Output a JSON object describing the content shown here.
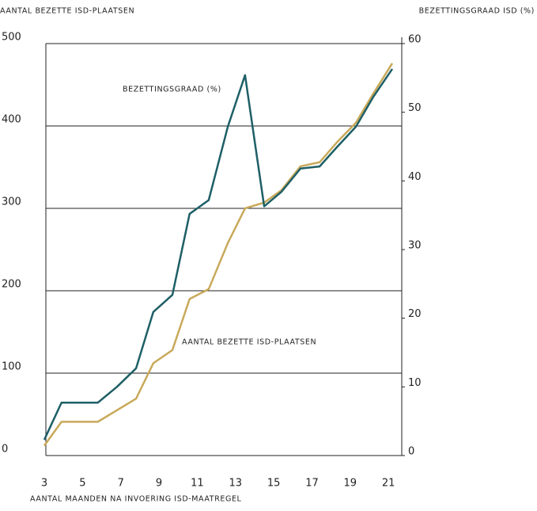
{
  "chart_data": {
    "type": "line",
    "title": "AANTAL BEZETTE ISD-PLAATSEN",
    "y2_title": "BEZETTINGSGRAAD ISD (%)",
    "x_label": "AANTAL MAANDEN NA INVOERING ISD-MAATREGEL",
    "annotations": [
      "BEZETTINGSGRAAD (%)",
      "AANTAL BEZETTE ISD-PLAATSEN"
    ],
    "x": [
      3,
      3.9,
      4.9,
      5.8,
      6.8,
      7.8,
      8.7,
      9.7,
      10.6,
      11.6,
      12.6,
      13.5,
      14.5,
      15.4,
      16.4,
      17.4,
      18.3,
      19.3,
      20.2,
      21.2
    ],
    "series": [
      {
        "name": "AANTAL BEZETTE ISD-PLAATSEN",
        "color": "#c8a95a",
        "axis": "y",
        "values": [
          12,
          41,
          41,
          41,
          55,
          69,
          112,
          128,
          190,
          202,
          258,
          300,
          307,
          322,
          351,
          356,
          380,
          404,
          439,
          476
        ]
      },
      {
        "name": "BEZETTINGSGRAAD (%)",
        "color": "#1e5f66",
        "axis": "y2",
        "values": [
          2.3,
          7.7,
          7.7,
          7.7,
          10.0,
          12.7,
          20.9,
          23.4,
          35.2,
          37.2,
          47.9,
          55.4,
          36.3,
          38.4,
          41.8,
          42.1,
          44.9,
          47.9,
          52.2,
          56.3
        ]
      }
    ],
    "xlim": [
      3,
      21.2
    ],
    "xticks": [
      3,
      5,
      7,
      9,
      11,
      13,
      15,
      17,
      19,
      21
    ],
    "ylim": [
      0,
      500
    ],
    "yticks": [
      0,
      100,
      200,
      300,
      400,
      500
    ],
    "y2lim": [
      0,
      60
    ],
    "y2ticks": [
      0,
      10,
      20,
      30,
      40,
      50,
      60
    ],
    "grid": true
  }
}
